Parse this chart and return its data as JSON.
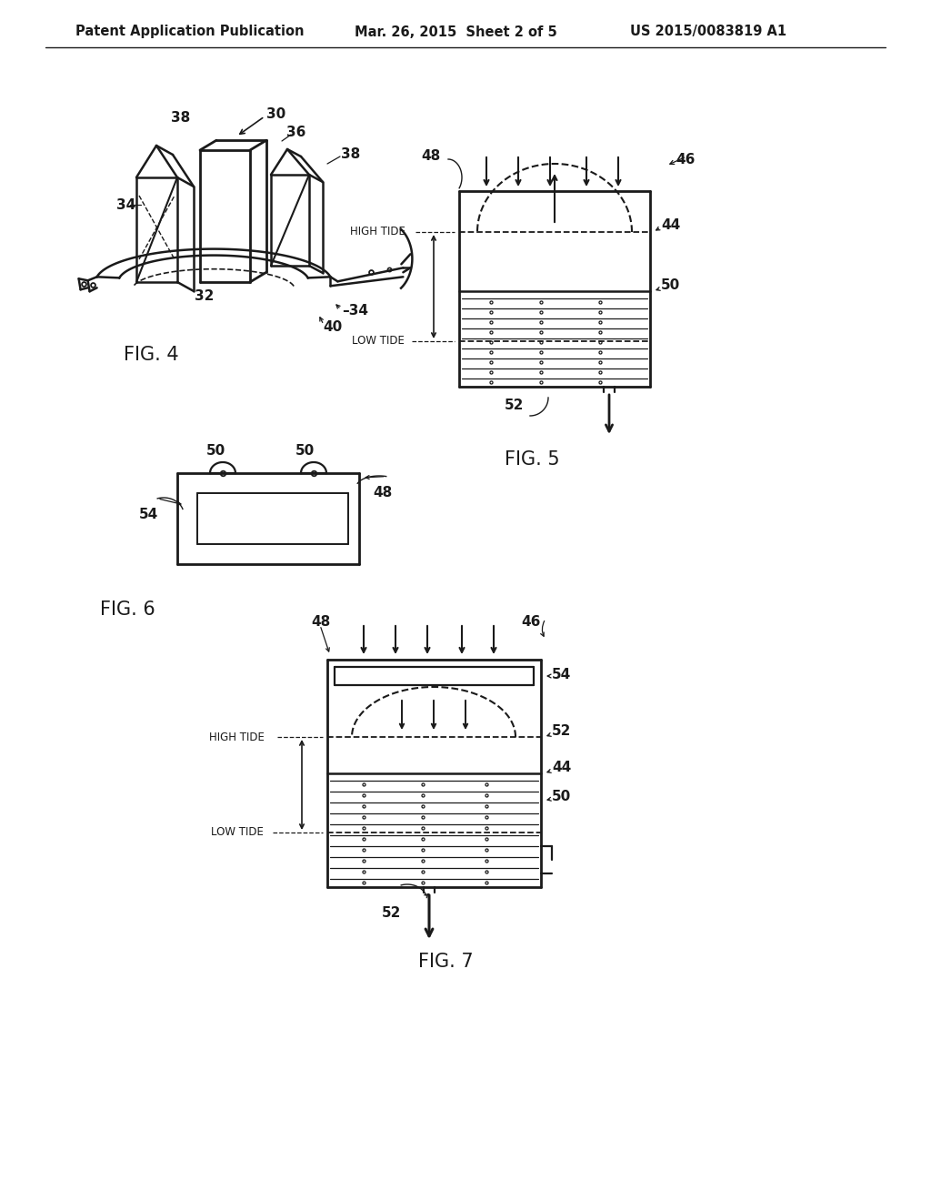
{
  "bg_color": "#ffffff",
  "header_left": "Patent Application Publication",
  "header_mid": "Mar. 26, 2015  Sheet 2 of 5",
  "header_right": "US 2015/0083819 A1",
  "fig4_label": "FIG. 4",
  "fig5_label": "FIG. 5",
  "fig6_label": "FIG. 6",
  "fig7_label": "FIG. 7",
  "line_color": "#1a1a1a",
  "font_size_header": 10.5,
  "font_size_fig": 15,
  "font_size_ref": 10
}
